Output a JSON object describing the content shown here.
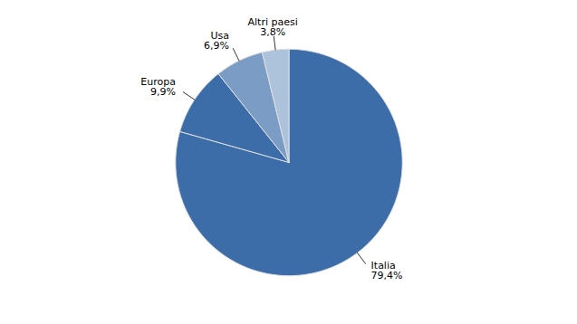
{
  "chart_data": {
    "type": "pie",
    "categories": [
      "Italia",
      "Europa",
      "Usa",
      "Altri paesi"
    ],
    "values": [
      79.4,
      9.9,
      6.9,
      3.8
    ],
    "value_labels": [
      "79,4%",
      "9,9%",
      "6,9%",
      "3,8%"
    ],
    "colors": [
      "#3C6DA8",
      "#3C6DA8",
      "#7A9CC5",
      "#ADC3DC"
    ],
    "data_labels": true
  }
}
